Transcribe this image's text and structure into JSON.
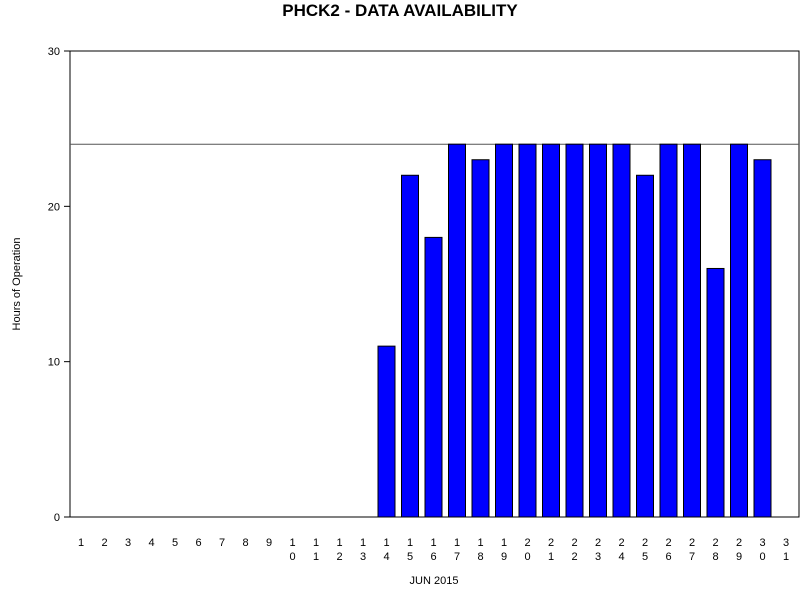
{
  "chart_data": {
    "type": "bar",
    "title": "PHCK2 - DATA AVAILABILITY",
    "xlabel": "JUN 2015",
    "ylabel": "Hours of Operation",
    "ylim": [
      0,
      30
    ],
    "yticks": [
      0,
      10,
      20,
      30
    ],
    "reference_line": 24,
    "categories": [
      "1",
      "2",
      "3",
      "4",
      "5",
      "6",
      "7",
      "8",
      "9",
      "10",
      "11",
      "12",
      "13",
      "14",
      "15",
      "16",
      "17",
      "18",
      "19",
      "20",
      "21",
      "22",
      "23",
      "24",
      "25",
      "26",
      "27",
      "28",
      "29",
      "30",
      "31"
    ],
    "values": [
      0,
      0,
      0,
      0,
      0,
      0,
      0,
      0,
      0,
      0,
      0,
      0,
      0,
      11,
      22,
      18,
      24,
      23,
      24,
      24,
      24,
      24,
      24,
      24,
      22,
      24,
      24,
      16,
      24,
      23,
      0
    ],
    "bar_color": "#0000ff",
    "grid": false,
    "legend": "none"
  }
}
